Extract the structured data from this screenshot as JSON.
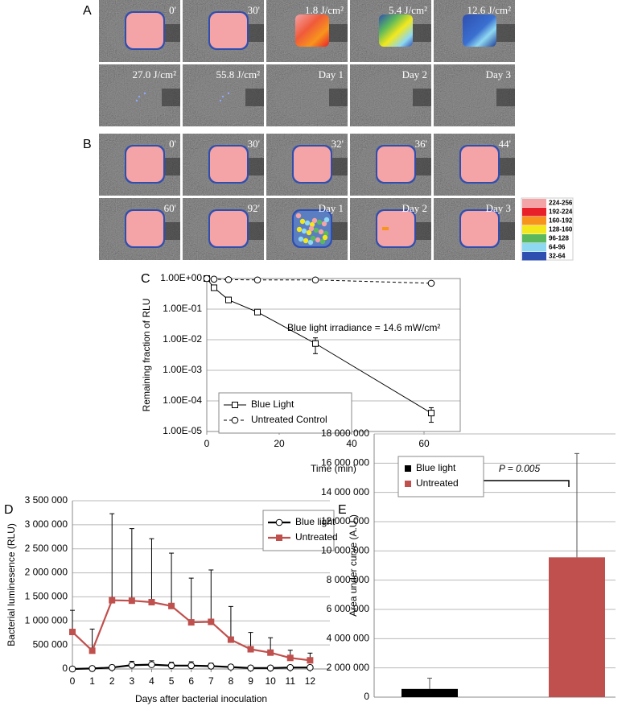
{
  "panels": [
    {
      "label": "A",
      "tiles": [
        "0'",
        "30'",
        "1.8 J/cm²",
        "5.4 J/cm²",
        "12.6 J/cm²",
        "27.0 J/cm²",
        "55.8 J/cm²",
        "Day 1",
        "Day 2",
        "Day 3"
      ]
    },
    {
      "label": "B",
      "tiles": [
        "0'",
        "30'",
        "32'",
        "36'",
        "44'",
        "60'",
        "92'",
        "Day 1",
        "Day 2",
        "Day 3"
      ]
    }
  ],
  "color_scale": {
    "labels": [
      "224-256",
      "192-224",
      "160-192",
      "128-160",
      "96-128",
      "64-96",
      "32-64"
    ],
    "colors": [
      "#f4a3a6",
      "#e8202a",
      "#f7941d",
      "#f2e81c",
      "#5cb85c",
      "#8fd8f2",
      "#2f4fb0"
    ]
  },
  "chart_data": [
    {
      "type": "line",
      "label": "C",
      "y_label": "Remaining fraction of RLU",
      "x_label": "Time (min)",
      "annotation": "Blue light irradiance = 14.6 mW/cm²",
      "log_y": true,
      "grid": true,
      "legend": "lower left",
      "error_bars": "both",
      "xlim": [
        0,
        70
      ],
      "xticks": [
        0,
        20,
        40,
        60
      ],
      "ylim": [
        1e-05,
        1
      ],
      "yticks": [
        {
          "value": 1,
          "label": "1.00E+00"
        },
        {
          "value": 0.1,
          "label": "1.00E-01"
        },
        {
          "value": 0.01,
          "label": "1.00E-02"
        },
        {
          "value": 0.001,
          "label": "1.00E-03"
        },
        {
          "value": 0.0001,
          "label": "1.00E-04"
        },
        {
          "value": 1e-05,
          "label": "1.00E-05"
        }
      ],
      "x": [
        0,
        2,
        6,
        14,
        30,
        62
      ],
      "series": [
        {
          "name": "Blue Light",
          "color": "#000000",
          "marker": "square",
          "filled": false,
          "dash": false,
          "values": [
            1,
            0.5,
            0.2,
            0.08,
            0.0075,
            4e-05
          ],
          "errors": [
            0,
            0,
            0,
            0.01,
            0.004,
            2e-05
          ]
        },
        {
          "name": "Untreated Control",
          "color": "#000000",
          "marker": "circle",
          "filled": false,
          "dash": true,
          "values": [
            1,
            0.95,
            0.92,
            0.9,
            0.9,
            0.7
          ],
          "errors": [
            0,
            0,
            0,
            0,
            0,
            0.1
          ]
        }
      ]
    },
    {
      "type": "line",
      "label": "D",
      "y_label": "Bacterial luminesence (RLU)",
      "x_label": "Days after bacterial inoculation",
      "log_y": false,
      "grid": true,
      "legend": "upper right",
      "error_bars": "upper",
      "xlim": [
        0,
        13
      ],
      "xticks": [
        0,
        1,
        2,
        3,
        4,
        5,
        6,
        7,
        8,
        9,
        10,
        11,
        12
      ],
      "ylim": [
        0,
        3500000
      ],
      "yticks": [
        0,
        {
          "value": 500000,
          "label": "500 000"
        },
        {
          "value": 1000000,
          "label": "1 000 000"
        },
        {
          "value": 1500000,
          "label": "1 500 000"
        },
        {
          "value": 2000000,
          "label": "2 000 000"
        },
        {
          "value": 2500000,
          "label": "2 500 000"
        },
        {
          "value": 3000000,
          "label": "3 000 000"
        },
        {
          "value": 3500000,
          "label": "3 500 000"
        }
      ],
      "x": [
        0,
        1,
        2,
        3,
        4,
        5,
        6,
        7,
        8,
        9,
        10,
        11,
        12
      ],
      "series": [
        {
          "name": "Blue light",
          "color": "#000000",
          "marker": "circle",
          "filled": false,
          "dash": false,
          "values": [
            0,
            10000,
            30000,
            80000,
            90000,
            70000,
            70000,
            60000,
            40000,
            20000,
            20000,
            30000,
            30000
          ],
          "errors": [
            0,
            0,
            50000,
            80000,
            80000,
            70000,
            80000,
            60000,
            50000,
            30000,
            20000,
            30000,
            20000
          ]
        },
        {
          "name": "Untreated",
          "color": "#c0504d",
          "marker": "square",
          "filled": true,
          "dash": false,
          "values": [
            770000,
            380000,
            1430000,
            1420000,
            1390000,
            1310000,
            970000,
            980000,
            610000,
            410000,
            340000,
            230000,
            180000
          ],
          "errors": [
            450000,
            450000,
            1800000,
            1500000,
            1320000,
            1100000,
            920000,
            1080000,
            690000,
            350000,
            310000,
            160000,
            150000
          ]
        }
      ]
    },
    {
      "type": "bar",
      "label": "E",
      "y_label": "Area under curve (A.U.)",
      "annotation": "P = 0.005",
      "grid": true,
      "legend": "upper left",
      "error_bars": "upper",
      "ylim": [
        0,
        18000000
      ],
      "yticks": [
        0,
        {
          "value": 2000000,
          "label": "2 000 000"
        },
        {
          "value": 4000000,
          "label": "4 000 000"
        },
        {
          "value": 6000000,
          "label": "6 000 000"
        },
        {
          "value": 8000000,
          "label": "8 000 000"
        },
        {
          "value": 10000000,
          "label": "10 000 000"
        },
        {
          "value": 12000000,
          "label": "12 000 000"
        },
        {
          "value": 14000000,
          "label": "14 000 000"
        },
        {
          "value": 16000000,
          "label": "16 000 000"
        },
        {
          "value": 18000000,
          "label": "18 000 000"
        }
      ],
      "series": [
        {
          "name": "Blue light",
          "color": "#000000",
          "values": [
            560000
          ],
          "errors": [
            740000
          ]
        },
        {
          "name": "Untreated",
          "color": "#c0504d",
          "values": [
            9560000
          ],
          "errors": [
            7100000
          ]
        }
      ]
    }
  ]
}
